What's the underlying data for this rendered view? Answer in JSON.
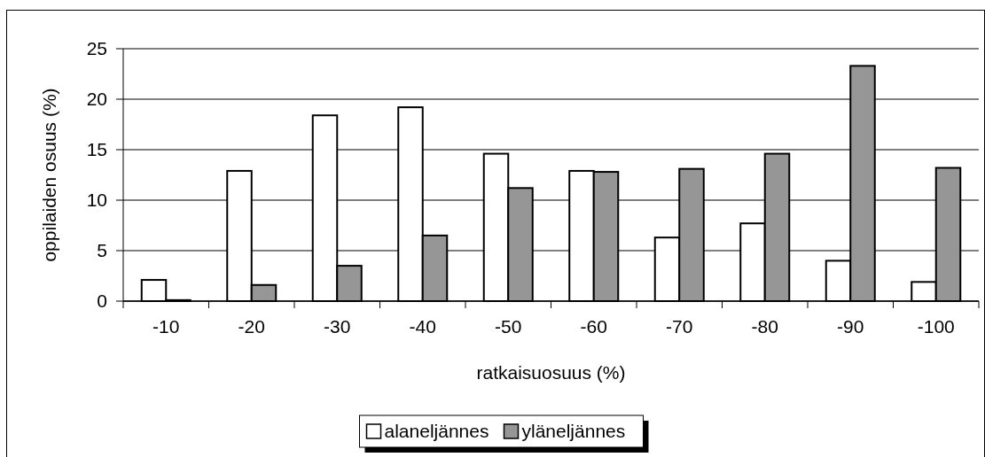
{
  "chart_data": {
    "type": "bar",
    "xlabel": "ratkaisuosuus (%)",
    "ylabel": "oppilaiden osuus (%)",
    "categories": [
      "-10",
      "-20",
      "-30",
      "-40",
      "-50",
      "-60",
      "-70",
      "-80",
      "-90",
      "-100"
    ],
    "series": [
      {
        "name": "alaneljännes",
        "color": "#ffffff",
        "values": [
          2.1,
          12.9,
          18.4,
          19.2,
          14.6,
          12.9,
          6.3,
          7.7,
          4.0,
          1.9
        ]
      },
      {
        "name": "yläneljännes",
        "color": "#969696",
        "values": [
          0.1,
          1.6,
          3.5,
          6.5,
          11.2,
          12.8,
          13.1,
          14.6,
          23.3,
          13.2
        ]
      }
    ],
    "ylim": [
      0,
      25
    ],
    "yticks": [
      0,
      5,
      10,
      15,
      20,
      25
    ],
    "grid": "y",
    "legend": "bottom"
  }
}
